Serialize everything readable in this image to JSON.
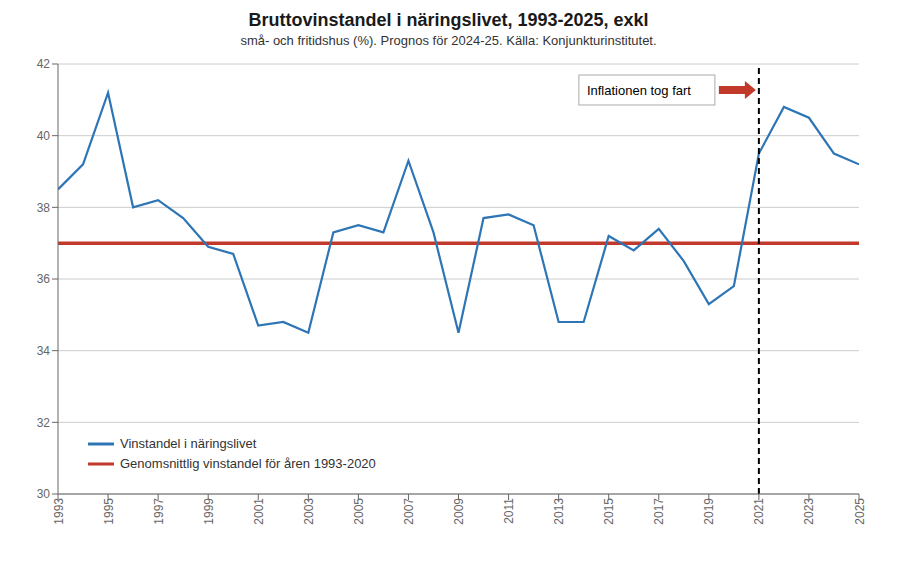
{
  "chart_data": {
    "type": "line",
    "title": "Bruttovinstandel i näringslivet, 1993-2025, exkl",
    "subtitle": "små- och fritidshus (%). Prognos för 2024-25. Källa: Konjunkturinstitutet.",
    "x": [
      1993,
      1994,
      1995,
      1996,
      1997,
      1998,
      1999,
      2000,
      2001,
      2002,
      2003,
      2004,
      2005,
      2006,
      2007,
      2008,
      2009,
      2010,
      2011,
      2012,
      2013,
      2014,
      2015,
      2016,
      2017,
      2018,
      2019,
      2020,
      2021,
      2022,
      2023,
      2024,
      2025
    ],
    "series": [
      {
        "name": "Vinstandel i näringslivet",
        "color": "#2e75b6",
        "line_style": "solid",
        "values": [
          38.5,
          39.2,
          41.2,
          38.0,
          38.2,
          37.7,
          36.9,
          36.7,
          34.7,
          34.8,
          34.5,
          37.3,
          37.5,
          37.3,
          39.3,
          37.3,
          34.5,
          37.7,
          37.8,
          37.5,
          34.8,
          34.8,
          37.2,
          36.8,
          37.4,
          36.5,
          35.3,
          35.8,
          39.5,
          40.8,
          40.5,
          39.5,
          39.2
        ]
      },
      {
        "name": "Genomsnittlig vinstandel för åren 1993-2020",
        "color": "#c0392b",
        "line_style": "solid",
        "values": [
          37.0,
          37.0,
          37.0,
          37.0,
          37.0,
          37.0,
          37.0,
          37.0,
          37.0,
          37.0,
          37.0,
          37.0,
          37.0,
          37.0,
          37.0,
          37.0,
          37.0,
          37.0,
          37.0,
          37.0,
          37.0,
          37.0,
          37.0,
          37.0,
          37.0,
          37.0,
          37.0,
          37.0,
          37.0,
          37.0,
          37.0,
          37.0,
          37.0
        ]
      }
    ],
    "xlim": [
      1993,
      2025
    ],
    "xticks": [
      1993,
      1995,
      1997,
      1999,
      2001,
      2003,
      2005,
      2007,
      2009,
      2011,
      2013,
      2015,
      2017,
      2019,
      2021,
      2023,
      2025
    ],
    "ylim": [
      30,
      42
    ],
    "yticks": [
      30,
      32,
      34,
      36,
      38,
      40,
      42
    ],
    "vlines": [
      {
        "x": 2021,
        "color": "#000000",
        "line_style": "dashed"
      }
    ],
    "annotations": [
      {
        "text": "Inflationen tog fart",
        "color": "#c0392b"
      }
    ],
    "grid": true,
    "legend": "lower left"
  }
}
